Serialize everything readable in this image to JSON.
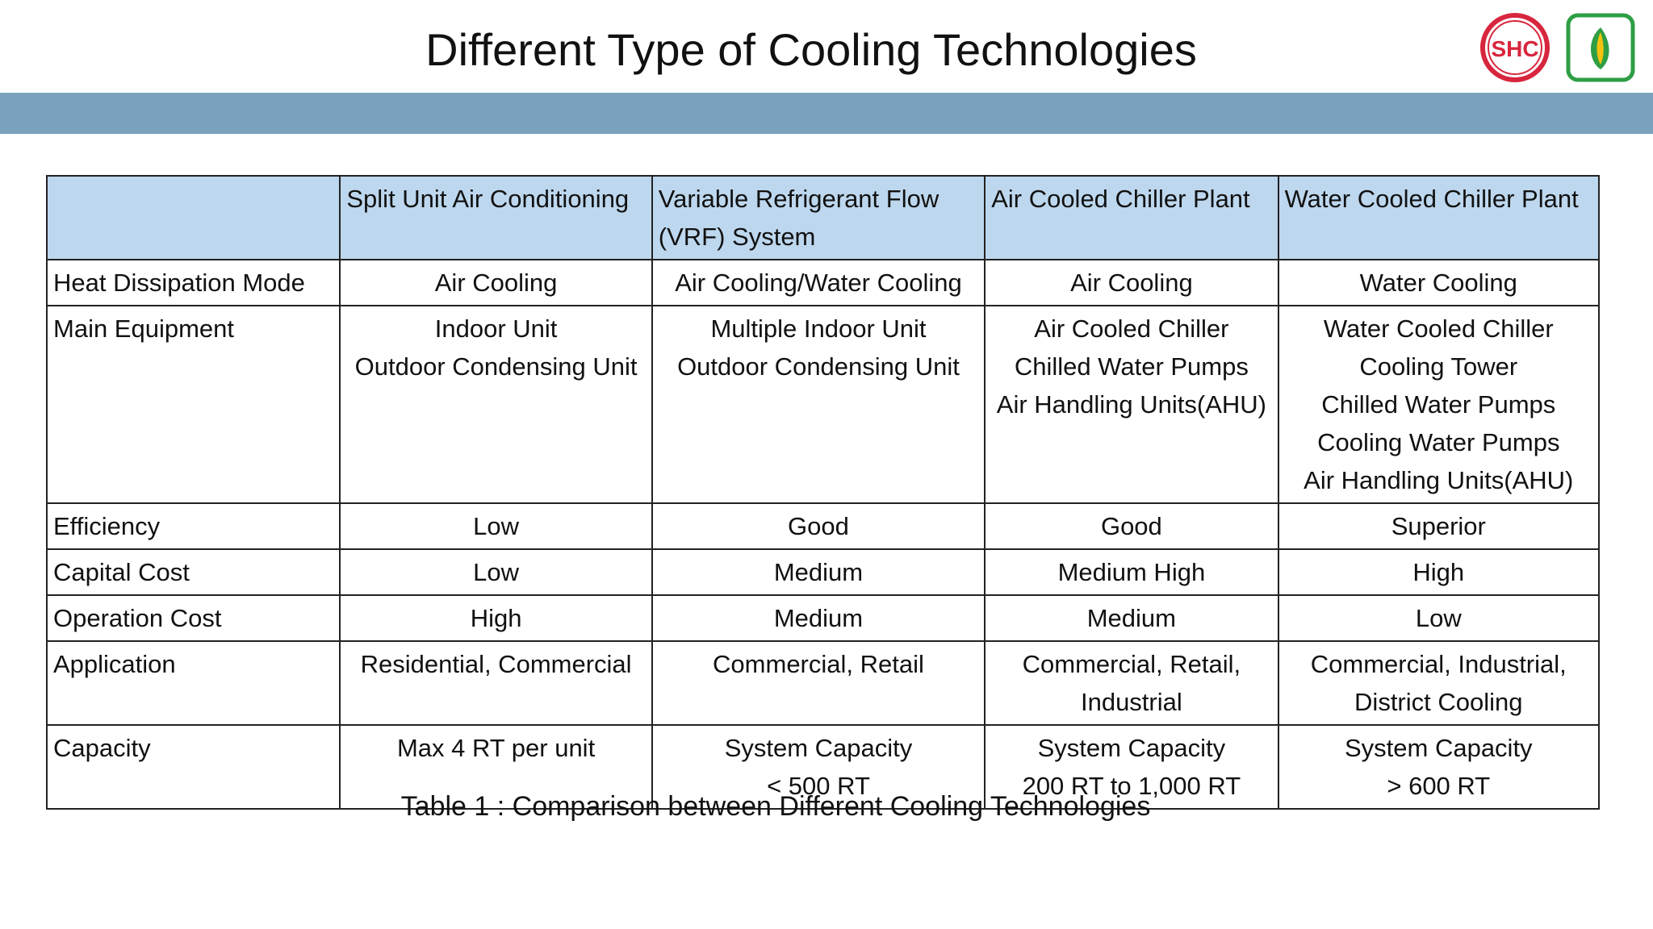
{
  "title": "Different Type of Cooling Technologies",
  "logos": {
    "left": {
      "icon": "shc-logo",
      "text": "SHC",
      "color": "#d7263d"
    },
    "right": {
      "icon": "leaf-logo",
      "color": "#2e9e44",
      "accent": "#f2c20f"
    }
  },
  "colors": {
    "band": "#7aa2bd",
    "header": "#bdd7ee"
  },
  "table": {
    "headers": [
      "",
      "Split Unit Air Conditioning",
      "Variable Refrigerant Flow (VRF) System",
      "Air Cooled Chiller Plant",
      "Water Cooled Chiller Plant"
    ],
    "rows": [
      {
        "label": "Heat Dissipation Mode",
        "cells": [
          [
            "Air Cooling"
          ],
          [
            "Air Cooling/Water Cooling"
          ],
          [
            "Air Cooling"
          ],
          [
            "Water Cooling"
          ]
        ]
      },
      {
        "label": "Main Equipment",
        "cells": [
          [
            "Indoor Unit",
            "Outdoor Condensing Unit"
          ],
          [
            "Multiple Indoor Unit",
            "Outdoor Condensing Unit"
          ],
          [
            "Air Cooled Chiller",
            "Chilled Water Pumps",
            "Air Handling Units(AHU)"
          ],
          [
            "Water Cooled Chiller",
            "Cooling Tower",
            "Chilled Water Pumps",
            "Cooling Water Pumps",
            "Air Handling Units(AHU)"
          ]
        ]
      },
      {
        "label": "Efficiency",
        "cells": [
          [
            "Low"
          ],
          [
            "Good"
          ],
          [
            "Good"
          ],
          [
            "Superior"
          ]
        ]
      },
      {
        "label": "Capital Cost",
        "cells": [
          [
            "Low"
          ],
          [
            "Medium"
          ],
          [
            "Medium High"
          ],
          [
            "High"
          ]
        ]
      },
      {
        "label": "Operation Cost",
        "cells": [
          [
            "High"
          ],
          [
            "Medium"
          ],
          [
            "Medium"
          ],
          [
            "Low"
          ]
        ]
      },
      {
        "label": "Application",
        "cells": [
          [
            "Residential, Commercial"
          ],
          [
            "Commercial, Retail"
          ],
          [
            "Commercial, Retail,",
            "Industrial"
          ],
          [
            "Commercial, Industrial,",
            "District Cooling"
          ]
        ]
      },
      {
        "label": "Capacity",
        "cells": [
          [
            "Max 4 RT per unit"
          ],
          [
            "System Capacity",
            "< 500 RT"
          ],
          [
            "System Capacity",
            "200 RT to 1,000 RT"
          ],
          [
            "System Capacity",
            "> 600 RT"
          ]
        ]
      }
    ]
  },
  "caption": "Table 1 : Comparison between Different Cooling Technologies"
}
